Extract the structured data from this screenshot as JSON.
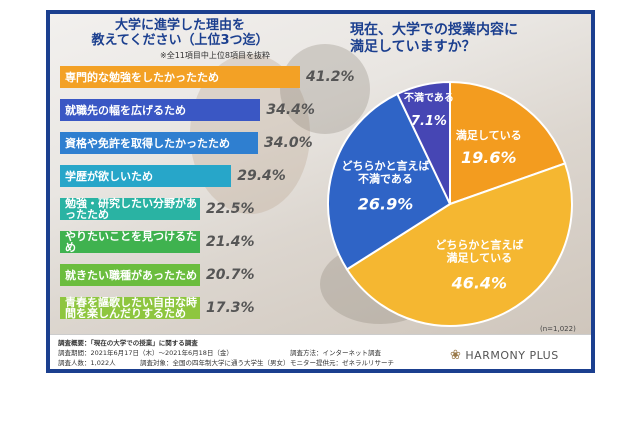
{
  "chart_data": [
    {
      "type": "bar",
      "title": "大学に進学した理由を教えてください（上位3つ迄）",
      "subtitle": "※全11項目中上位8項目を抜粋",
      "categories": [
        "専門的な勉強をしたかったため",
        "就職先の幅を広げるため",
        "資格や免許を取得したかったため",
        "学歴が欲しいため",
        "勉強・研究したい分野があったため",
        "やりたいことを見つけるため",
        "就きたい職種があったため",
        "青春を謳歌したい自由な時間を楽しんだりするため"
      ],
      "values": [
        41.2,
        34.4,
        34.0,
        29.4,
        22.5,
        21.4,
        20.7,
        17.3
      ],
      "value_labels": [
        "41.2%",
        "34.4%",
        "34.0%",
        "29.4%",
        "22.5%",
        "21.4%",
        "20.7%",
        "17.3%"
      ],
      "colors": [
        "#f3a125",
        "#3a57c4",
        "#2f7fd0",
        "#27a6c9",
        "#2ab3a3",
        "#3fb24f",
        "#6bbd3e",
        "#8ec63f"
      ]
    },
    {
      "type": "pie",
      "title": "現在、大学での授業内容に満足していますか？",
      "categories": [
        "満足している",
        "どちらかと言えば満足している",
        "どちらかと言えば不満である",
        "不満である"
      ],
      "values": [
        19.6,
        46.4,
        26.9,
        7.1
      ],
      "value_labels": [
        "19.6%",
        "46.4%",
        "26.9%",
        "7.1%"
      ],
      "colors": [
        "#f39c1f",
        "#f5b731",
        "#2f64c6",
        "#4646b4"
      ],
      "note": "(n=1,022)"
    }
  ],
  "footer": {
    "line1": "調査概要：「現在の大学での授業」に関する調査",
    "line2": "調査期間：2021年6月17日（木）～2021年6月18日（金）",
    "line3": "調査方法：インターネット調査",
    "line4": "調査人数：1,022人",
    "line5": "調査対象：全国の四年制大学に通う大学生（男女）",
    "line6": "モニター提供元：ゼネラルリサーチ",
    "logo": "HARMONY PLUS"
  },
  "bar_chart_title_line1": "大学に進学した理由を",
  "bar_chart_title_line2": "教えてください（上位3つ迄）",
  "pie_chart_title_line1": "現在、大学での授業内容に",
  "pie_chart_title_line2": "満足していますか？"
}
